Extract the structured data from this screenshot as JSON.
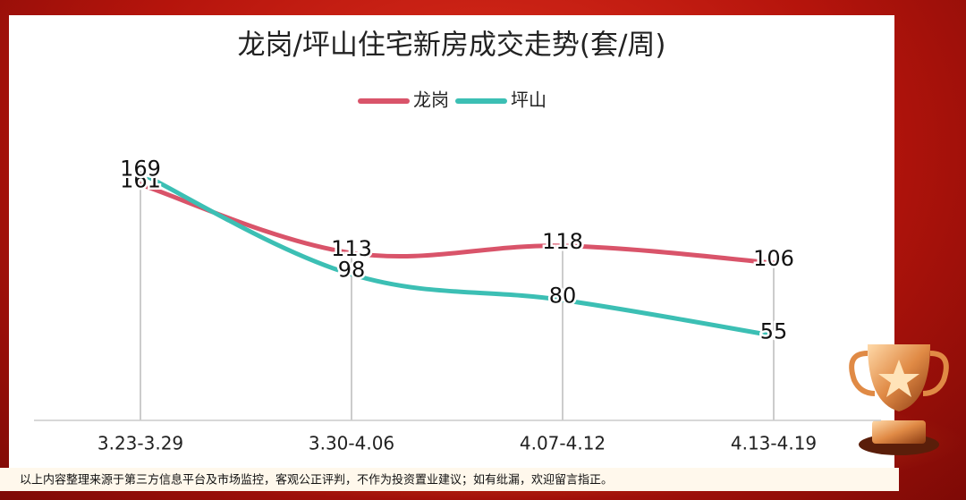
{
  "chart_data": {
    "type": "line",
    "title": "龙岗/坪山住宅新房成交走势(套/周)",
    "categories": [
      "3.23-3.29",
      "3.30-4.06",
      "4.07-4.12",
      "4.13-4.19"
    ],
    "series": [
      {
        "name": "龙岗",
        "color": "#d9546a",
        "values": [
          161,
          113,
          118,
          106
        ]
      },
      {
        "name": "坪山",
        "color": "#3cbfb4",
        "values": [
          169,
          98,
          80,
          55
        ]
      }
    ],
    "ylim": [
      0,
      180
    ],
    "footnote": "以上内容整理来源于第三方信息平台及市场监控，客观公正评判，不作为投资置业建议；如有纰漏，欢迎留言指正。"
  }
}
